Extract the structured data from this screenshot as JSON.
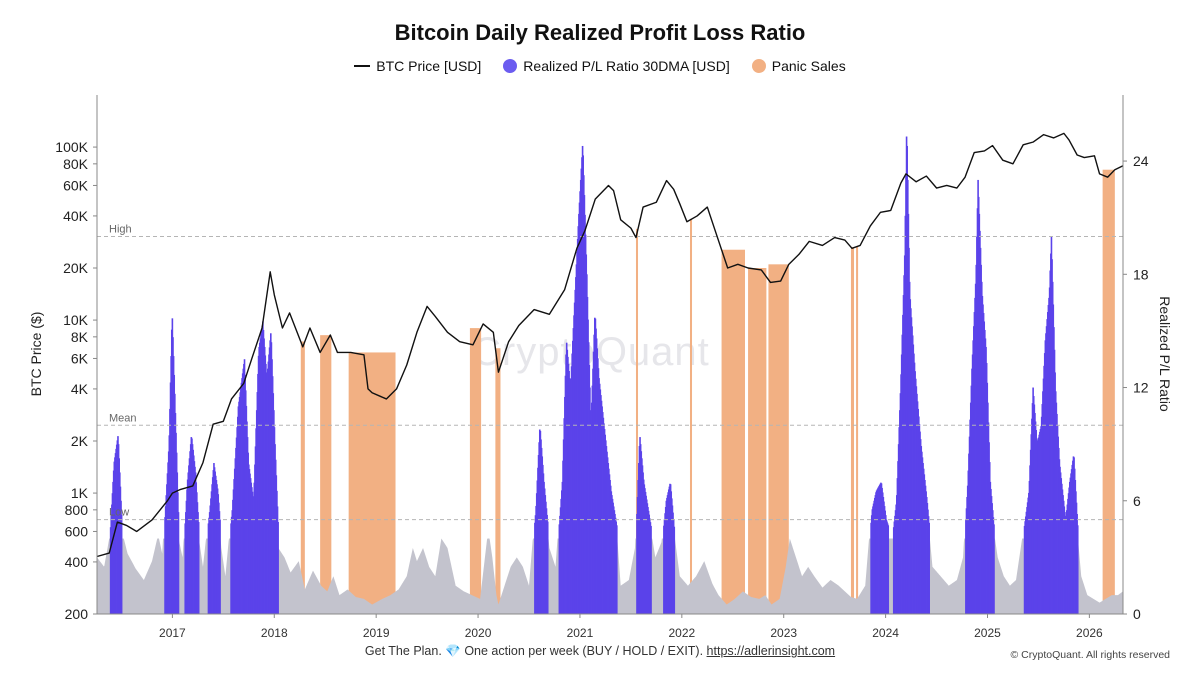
{
  "title": "Bitcoin Daily Realized Profit Loss Ratio",
  "legend": [
    {
      "key": "price",
      "label": "BTC Price [USD]",
      "color": "#111111"
    },
    {
      "key": "ratio",
      "label": "Realized P/L Ratio 30DMA [USD]",
      "color": "#6b5cf0"
    },
    {
      "key": "panic",
      "label": "Panic Sales",
      "color": "#f2b083"
    }
  ],
  "watermark": "CryptoQuant",
  "footer": {
    "text": "Get The Plan. 💎 One action per week (BUY / HOLD / EXIT).",
    "link": "https://adlerinsight.com"
  },
  "copyright": "© CryptoQuant. All rights reserved",
  "chart_data": {
    "type": "area",
    "ylabel_left": "BTC Price ($)",
    "ylabel_right": "Realized P/L Ratio",
    "x_range": [
      2016.26,
      2026.33
    ],
    "x_ticks": [
      "2017",
      "2018",
      "2019",
      "2020",
      "2021",
      "2022",
      "2023",
      "2024",
      "2025",
      "2026"
    ],
    "y_left_scale": "log",
    "y_left_range": [
      200,
      200000
    ],
    "y_left_ticks": [
      {
        "value": 200,
        "label": "200"
      },
      {
        "value": 400,
        "label": "400"
      },
      {
        "value": 600,
        "label": "600"
      },
      {
        "value": 800,
        "label": "800"
      },
      {
        "value": 1000,
        "label": "1K"
      },
      {
        "value": 2000,
        "label": "2K"
      },
      {
        "value": 4000,
        "label": "4K"
      },
      {
        "value": 6000,
        "label": "6K"
      },
      {
        "value": 8000,
        "label": "8K"
      },
      {
        "value": 10000,
        "label": "10K"
      },
      {
        "value": 20000,
        "label": "20K"
      },
      {
        "value": 40000,
        "label": "40K"
      },
      {
        "value": 60000,
        "label": "60K"
      },
      {
        "value": 80000,
        "label": "80K"
      },
      {
        "value": 100000,
        "label": "100K"
      }
    ],
    "y_right_range": [
      0,
      27.5
    ],
    "y_right_ticks": [
      0,
      6,
      12,
      18,
      24
    ],
    "reference_lines": [
      {
        "label": "High",
        "value": 20
      },
      {
        "label": "Mean",
        "value": 10
      },
      {
        "label": "Low",
        "value": 5
      }
    ],
    "grid": false,
    "price_series": {
      "name": "BTC Price [USD]",
      "points": [
        [
          2016.26,
          430
        ],
        [
          2016.38,
          450
        ],
        [
          2016.46,
          680
        ],
        [
          2016.55,
          650
        ],
        [
          2016.65,
          600
        ],
        [
          2016.8,
          700
        ],
        [
          2016.95,
          900
        ],
        [
          2017.0,
          1000
        ],
        [
          2017.08,
          1050
        ],
        [
          2017.2,
          1100
        ],
        [
          2017.3,
          1500
        ],
        [
          2017.4,
          2500
        ],
        [
          2017.5,
          2600
        ],
        [
          2017.58,
          3500
        ],
        [
          2017.7,
          4300
        ],
        [
          2017.78,
          6000
        ],
        [
          2017.88,
          9000
        ],
        [
          2017.96,
          19000
        ],
        [
          2018.0,
          14000
        ],
        [
          2018.08,
          9000
        ],
        [
          2018.15,
          11000
        ],
        [
          2018.28,
          7000
        ],
        [
          2018.35,
          9000
        ],
        [
          2018.45,
          6500
        ],
        [
          2018.55,
          8200
        ],
        [
          2018.62,
          6500
        ],
        [
          2018.75,
          6500
        ],
        [
          2018.88,
          6300
        ],
        [
          2018.92,
          4000
        ],
        [
          2018.96,
          3800
        ],
        [
          2019.1,
          3500
        ],
        [
          2019.2,
          4000
        ],
        [
          2019.3,
          5500
        ],
        [
          2019.4,
          8500
        ],
        [
          2019.5,
          12000
        ],
        [
          2019.58,
          10500
        ],
        [
          2019.7,
          8500
        ],
        [
          2019.82,
          7500
        ],
        [
          2019.95,
          7200
        ],
        [
          2020.05,
          9500
        ],
        [
          2020.15,
          8500
        ],
        [
          2020.2,
          5000
        ],
        [
          2020.3,
          7500
        ],
        [
          2020.4,
          9300
        ],
        [
          2020.55,
          11500
        ],
        [
          2020.7,
          10800
        ],
        [
          2020.85,
          15000
        ],
        [
          2020.97,
          26000
        ],
        [
          2021.05,
          33000
        ],
        [
          2021.15,
          50000
        ],
        [
          2021.28,
          60000
        ],
        [
          2021.33,
          56000
        ],
        [
          2021.4,
          38000
        ],
        [
          2021.5,
          34000
        ],
        [
          2021.55,
          30000
        ],
        [
          2021.62,
          45000
        ],
        [
          2021.75,
          48000
        ],
        [
          2021.85,
          64000
        ],
        [
          2021.92,
          57000
        ],
        [
          2021.98,
          47000
        ],
        [
          2022.05,
          37000
        ],
        [
          2022.15,
          40000
        ],
        [
          2022.25,
          45000
        ],
        [
          2022.35,
          30000
        ],
        [
          2022.45,
          20000
        ],
        [
          2022.55,
          21000
        ],
        [
          2022.65,
          20000
        ],
        [
          2022.78,
          19500
        ],
        [
          2022.87,
          16500
        ],
        [
          2022.97,
          16800
        ],
        [
          2023.05,
          21000
        ],
        [
          2023.15,
          24000
        ],
        [
          2023.25,
          28500
        ],
        [
          2023.38,
          27000
        ],
        [
          2023.5,
          30000
        ],
        [
          2023.6,
          29000
        ],
        [
          2023.67,
          26000
        ],
        [
          2023.75,
          27000
        ],
        [
          2023.85,
          35000
        ],
        [
          2023.95,
          42000
        ],
        [
          2024.05,
          43000
        ],
        [
          2024.15,
          62000
        ],
        [
          2024.2,
          70000
        ],
        [
          2024.3,
          63000
        ],
        [
          2024.4,
          68000
        ],
        [
          2024.5,
          58000
        ],
        [
          2024.6,
          60000
        ],
        [
          2024.7,
          58000
        ],
        [
          2024.78,
          67000
        ],
        [
          2024.87,
          93000
        ],
        [
          2024.97,
          95000
        ],
        [
          2025.05,
          102000
        ],
        [
          2025.15,
          84000
        ],
        [
          2025.25,
          80000
        ],
        [
          2025.35,
          103000
        ],
        [
          2025.45,
          107000
        ],
        [
          2025.55,
          118000
        ],
        [
          2025.65,
          113000
        ],
        [
          2025.75,
          120000
        ],
        [
          2025.8,
          110000
        ],
        [
          2025.88,
          90000
        ],
        [
          2025.95,
          87000
        ],
        [
          2026.05,
          89000
        ],
        [
          2026.1,
          70000
        ],
        [
          2026.18,
          67000
        ],
        [
          2026.25,
          74000
        ],
        [
          2026.33,
          78000
        ]
      ]
    },
    "ratio_series": {
      "name": "Realized P/L Ratio 30DMA [USD]",
      "points": [
        [
          2016.26,
          3.0
        ],
        [
          2016.33,
          2.5
        ],
        [
          2016.38,
          4.0
        ],
        [
          2016.42,
          8.0
        ],
        [
          2016.46,
          9.5
        ],
        [
          2016.5,
          4.5
        ],
        [
          2016.56,
          3.2
        ],
        [
          2016.64,
          2.4
        ],
        [
          2016.72,
          1.8
        ],
        [
          2016.8,
          2.8
        ],
        [
          2016.86,
          4.2
        ],
        [
          2016.9,
          3.2
        ],
        [
          2016.96,
          9.0
        ],
        [
          2016.99,
          16.0
        ],
        [
          2017.02,
          11.0
        ],
        [
          2017.06,
          4.0
        ],
        [
          2017.1,
          3.0
        ],
        [
          2017.14,
          7.0
        ],
        [
          2017.18,
          9.5
        ],
        [
          2017.22,
          7.5
        ],
        [
          2017.26,
          4.0
        ],
        [
          2017.3,
          2.5
        ],
        [
          2017.36,
          5.5
        ],
        [
          2017.4,
          8.0
        ],
        [
          2017.44,
          6.5
        ],
        [
          2017.48,
          3.5
        ],
        [
          2017.52,
          2.0
        ],
        [
          2017.58,
          5.5
        ],
        [
          2017.64,
          11.0
        ],
        [
          2017.7,
          13.5
        ],
        [
          2017.74,
          8.0
        ],
        [
          2017.79,
          6.0
        ],
        [
          2017.84,
          14.0
        ],
        [
          2017.88,
          15.5
        ],
        [
          2017.92,
          12.5
        ],
        [
          2017.96,
          15.0
        ],
        [
          2018.0,
          9.0
        ],
        [
          2018.04,
          3.5
        ],
        [
          2018.1,
          3.0
        ],
        [
          2018.16,
          2.2
        ],
        [
          2018.24,
          2.8
        ],
        [
          2018.3,
          1.3
        ],
        [
          2018.38,
          2.3
        ],
        [
          2018.46,
          1.5
        ],
        [
          2018.52,
          1.2
        ],
        [
          2018.58,
          2.0
        ],
        [
          2018.64,
          1.0
        ],
        [
          2018.72,
          1.3
        ],
        [
          2018.8,
          0.9
        ],
        [
          2018.88,
          0.8
        ],
        [
          2018.96,
          0.5
        ],
        [
          2019.06,
          0.8
        ],
        [
          2019.14,
          1.0
        ],
        [
          2019.22,
          1.3
        ],
        [
          2019.3,
          2.0
        ],
        [
          2019.36,
          3.5
        ],
        [
          2019.4,
          2.8
        ],
        [
          2019.46,
          3.5
        ],
        [
          2019.52,
          2.5
        ],
        [
          2019.58,
          2.0
        ],
        [
          2019.64,
          4.0
        ],
        [
          2019.7,
          3.5
        ],
        [
          2019.78,
          1.5
        ],
        [
          2019.86,
          1.2
        ],
        [
          2019.94,
          1.0
        ],
        [
          2020.02,
          0.8
        ],
        [
          2020.1,
          4.5
        ],
        [
          2020.14,
          3.0
        ],
        [
          2020.18,
          1.0
        ],
        [
          2020.2,
          0.5
        ],
        [
          2020.26,
          1.5
        ],
        [
          2020.32,
          2.5
        ],
        [
          2020.38,
          3.0
        ],
        [
          2020.44,
          2.5
        ],
        [
          2020.5,
          1.5
        ],
        [
          2020.56,
          5.5
        ],
        [
          2020.6,
          10.0
        ],
        [
          2020.64,
          7.0
        ],
        [
          2020.7,
          3.5
        ],
        [
          2020.76,
          2.5
        ],
        [
          2020.82,
          7.0
        ],
        [
          2020.86,
          14.5
        ],
        [
          2020.9,
          12.0
        ],
        [
          2020.94,
          16.5
        ],
        [
          2020.98,
          21.0
        ],
        [
          2021.02,
          25.0
        ],
        [
          2021.06,
          18.0
        ],
        [
          2021.1,
          10.0
        ],
        [
          2021.14,
          16.0
        ],
        [
          2021.18,
          12.5
        ],
        [
          2021.24,
          9.5
        ],
        [
          2021.3,
          6.5
        ],
        [
          2021.36,
          4.5
        ],
        [
          2021.4,
          1.5
        ],
        [
          2021.48,
          1.8
        ],
        [
          2021.54,
          3.5
        ],
        [
          2021.58,
          9.5
        ],
        [
          2021.62,
          7.0
        ],
        [
          2021.68,
          5.0
        ],
        [
          2021.74,
          3.0
        ],
        [
          2021.8,
          3.8
        ],
        [
          2021.84,
          6.0
        ],
        [
          2021.88,
          7.0
        ],
        [
          2021.92,
          4.5
        ],
        [
          2021.98,
          2.0
        ],
        [
          2022.06,
          1.5
        ],
        [
          2022.14,
          2.0
        ],
        [
          2022.22,
          2.8
        ],
        [
          2022.3,
          1.6
        ],
        [
          2022.36,
          1.0
        ],
        [
          2022.44,
          0.5
        ],
        [
          2022.52,
          0.8
        ],
        [
          2022.6,
          1.2
        ],
        [
          2022.68,
          0.9
        ],
        [
          2022.76,
          0.8
        ],
        [
          2022.82,
          1.0
        ],
        [
          2022.88,
          0.5
        ],
        [
          2022.96,
          0.8
        ],
        [
          2023.02,
          2.5
        ],
        [
          2023.06,
          4.0
        ],
        [
          2023.12,
          3.0
        ],
        [
          2023.18,
          2.0
        ],
        [
          2023.24,
          2.5
        ],
        [
          2023.3,
          2.0
        ],
        [
          2023.38,
          1.4
        ],
        [
          2023.46,
          1.8
        ],
        [
          2023.54,
          1.5
        ],
        [
          2023.6,
          1.2
        ],
        [
          2023.66,
          0.9
        ],
        [
          2023.72,
          0.8
        ],
        [
          2023.8,
          1.5
        ],
        [
          2023.86,
          5.5
        ],
        [
          2023.9,
          6.5
        ],
        [
          2023.95,
          7.0
        ],
        [
          2024.0,
          5.0
        ],
        [
          2024.06,
          4.0
        ],
        [
          2024.1,
          6.0
        ],
        [
          2024.14,
          12.0
        ],
        [
          2024.18,
          19.0
        ],
        [
          2024.2,
          26.0
        ],
        [
          2024.23,
          17.0
        ],
        [
          2024.28,
          13.0
        ],
        [
          2024.34,
          9.0
        ],
        [
          2024.4,
          6.0
        ],
        [
          2024.46,
          2.5
        ],
        [
          2024.54,
          2.0
        ],
        [
          2024.62,
          1.5
        ],
        [
          2024.7,
          1.8
        ],
        [
          2024.76,
          3.0
        ],
        [
          2024.8,
          7.0
        ],
        [
          2024.84,
          13.0
        ],
        [
          2024.88,
          18.0
        ],
        [
          2024.9,
          23.0
        ],
        [
          2024.94,
          17.0
        ],
        [
          2024.98,
          14.0
        ],
        [
          2025.02,
          7.0
        ],
        [
          2025.06,
          4.5
        ],
        [
          2025.1,
          3.0
        ],
        [
          2025.16,
          2.0
        ],
        [
          2025.22,
          1.5
        ],
        [
          2025.28,
          1.8
        ],
        [
          2025.34,
          4.0
        ],
        [
          2025.4,
          6.5
        ],
        [
          2025.44,
          12.0
        ],
        [
          2025.48,
          9.0
        ],
        [
          2025.52,
          10.0
        ],
        [
          2025.56,
          14.5
        ],
        [
          2025.6,
          17.0
        ],
        [
          2025.62,
          20.0
        ],
        [
          2025.66,
          12.0
        ],
        [
          2025.7,
          8.0
        ],
        [
          2025.76,
          5.0
        ],
        [
          2025.8,
          7.0
        ],
        [
          2025.84,
          8.5
        ],
        [
          2025.88,
          4.5
        ],
        [
          2025.92,
          2.0
        ],
        [
          2025.98,
          1.0
        ],
        [
          2026.04,
          0.8
        ],
        [
          2026.1,
          0.6
        ],
        [
          2026.16,
          0.8
        ],
        [
          2026.22,
          1.0
        ],
        [
          2026.28,
          1.0
        ],
        [
          2026.33,
          1.2
        ]
      ]
    },
    "panic_sales": [
      [
        2018.26,
        2018.3
      ],
      [
        2018.45,
        2018.56
      ],
      [
        2018.73,
        2019.19
      ],
      [
        2019.92,
        2020.03
      ],
      [
        2020.17,
        2020.22
      ],
      [
        2021.55,
        2021.57
      ],
      [
        2022.08,
        2022.1
      ],
      [
        2022.39,
        2022.62
      ],
      [
        2022.65,
        2022.83
      ],
      [
        2022.85,
        2023.05
      ],
      [
        2023.66,
        2023.69
      ],
      [
        2023.71,
        2023.73
      ],
      [
        2026.13,
        2026.25
      ]
    ]
  }
}
